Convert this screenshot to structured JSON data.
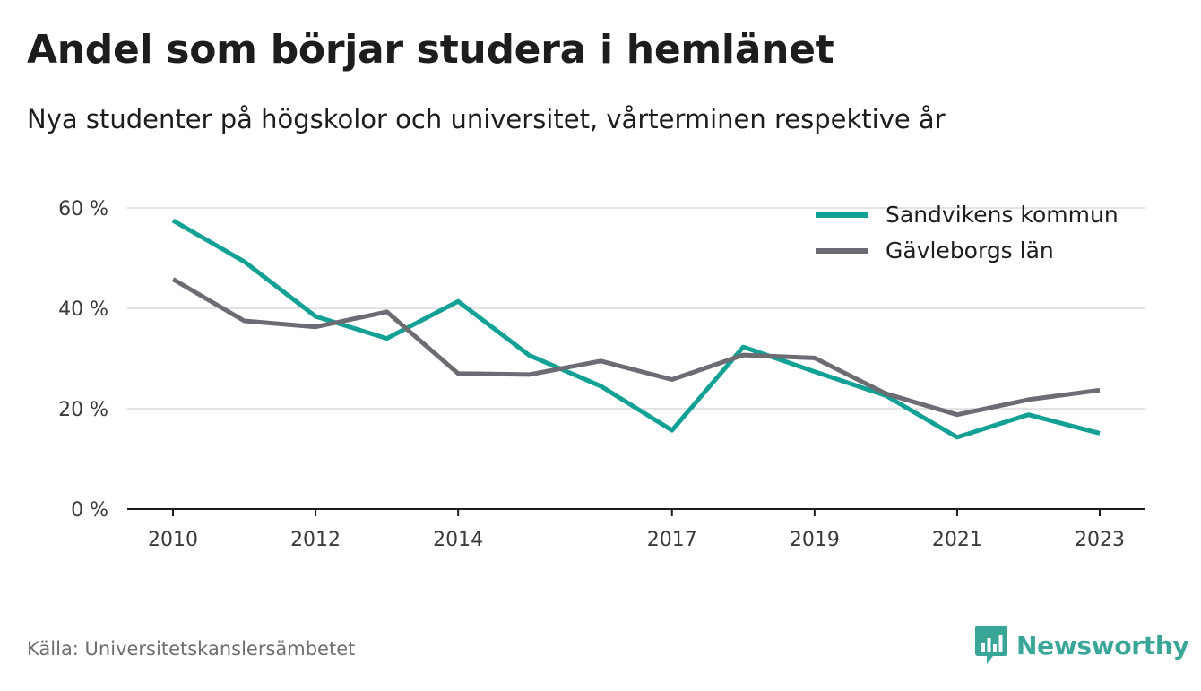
{
  "title": "Andel som börjar studera i hemlänet",
  "subtitle": "Nya studenter på högskolor och universitet, vårterminen respektive år",
  "source": "Källa: Universitetskanslersämbetet",
  "brand": {
    "name": "Newsworthy",
    "icon": "newsworthy-bar-chart-icon",
    "color": "#3aa697"
  },
  "chart_data": {
    "type": "line",
    "x": [
      2010,
      2011,
      2012,
      2013,
      2014,
      2015,
      2016,
      2017,
      2018,
      2019,
      2020,
      2021,
      2022,
      2023
    ],
    "x_ticks": [
      2010,
      2012,
      2014,
      2017,
      2019,
      2021,
      2023
    ],
    "y_ticks": [
      "0 %",
      "20 %",
      "40 %",
      "60 %"
    ],
    "ylim": [
      0,
      60
    ],
    "grid": true,
    "legend_position": "top-right",
    "series": [
      {
        "name": "Sandvikens kommun",
        "color": "#12a194",
        "values": [
          57.5,
          49.3,
          38.4,
          34.0,
          41.4,
          30.6,
          24.5,
          15.7,
          32.3,
          27.4,
          22.6,
          14.3,
          18.8,
          15.1
        ]
      },
      {
        "name": "Gävleborgs län",
        "color": "#6d6c73",
        "values": [
          45.8,
          37.5,
          36.3,
          39.3,
          27.0,
          26.8,
          29.5,
          25.8,
          30.7,
          30.1,
          23.0,
          18.8,
          21.8,
          23.7
        ]
      }
    ]
  }
}
